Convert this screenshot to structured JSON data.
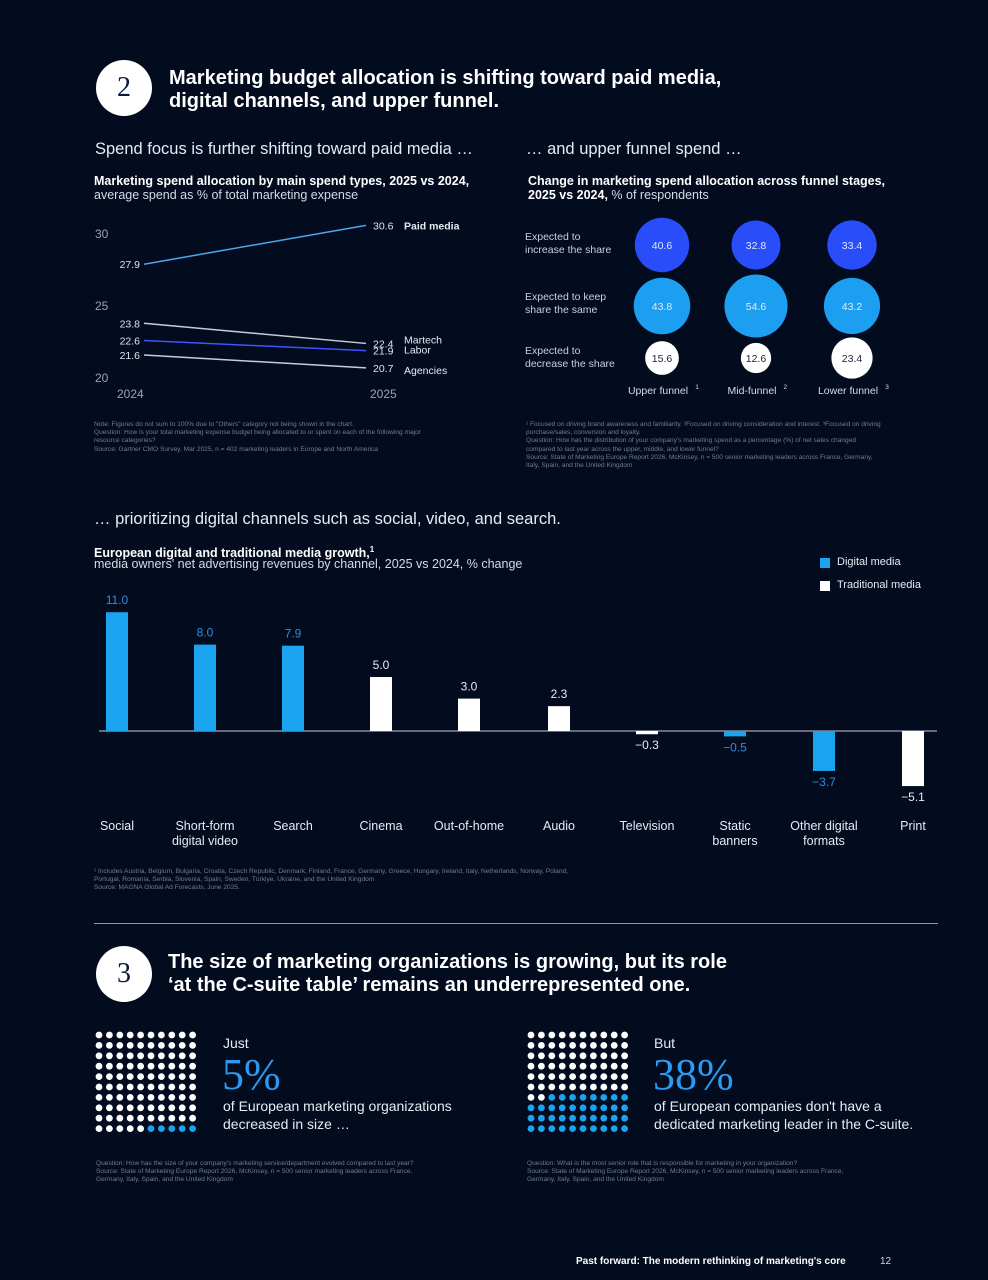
{
  "section2": {
    "number": "2",
    "title_line1": "Marketing budget allocation is shifting toward paid media,",
    "title_line2": "digital channels, and upper funnel."
  },
  "line_panel": {
    "subtitle": "Spend focus is further shifting toward paid media …",
    "title": "Marketing spend allocation by main spend types, 2025 vs 2024,",
    "desc": "average spend as % of total marketing expense",
    "notes": [
      "Note: Figures do not sum to 100% due to \"Others\" category not being shown in the chart.",
      "Question: How is your total marketing expense budget being allocated to or spent on each of the following major",
      "resource categories?",
      "Source: Gartner CMO Survey, Mar 2025, n = 402 marketing leaders in Europe and North America"
    ]
  },
  "bubble_panel": {
    "subtitle": "… and upper funnel spend …",
    "title": "Change in marketing spend allocation across funnel stages,",
    "title2": "2025 vs 2024,",
    "desc": " % of respondents",
    "notes": [
      "¹ Focused on driving brand awareness and familiarity. ²Focused on driving consideration and interest. ³Focused on driving",
      "purchase/sales, conversion and loyalty.",
      "Question: How has the distribution of your company's marketing spend as a percentage (%) of net sales changed",
      "compared to last year across the upper, middle, and lower funnel?",
      "Source: State of Marketing Europe Report 2026, McKinsey, n = 500 senior marketing leaders across France, Germany,",
      "Italy, Spain, and the United Kingdom"
    ]
  },
  "bar_panel": {
    "subtitle": "… prioritizing digital channels such as social, video, and search.",
    "title": "European digital and traditional media growth,",
    "title_sup": "1",
    "desc": "media owners' net advertising revenues by channel, 2025 vs 2024, % change",
    "notes": [
      "¹ Includes Austria, Belgium, Bulgaria, Croatia, Czech Republic, Denmark, Finland, France, Germany, Greece, Hungary, Ireland, Italy, Netherlands, Norway, Poland,",
      "Portugal, Romania, Serbia, Slovenia, Spain, Sweden, Türkiye, Ukraine, and the United Kingdom",
      "Source: MAGNA Global Ad Forecasts, June 2025."
    ]
  },
  "section3": {
    "number": "3",
    "title_line1": "The size of marketing organizations is growing, but its role",
    "title_line2": "‘at the C-suite table’ remains an underrepresented one."
  },
  "stat1": {
    "pre": "Just",
    "value": "5%",
    "line1": "of European marketing organizations",
    "line2": "decreased in size …",
    "fraction": 0.05,
    "notes": [
      "Question: How has the size of your company's marketing service/department evolved compared to last year?",
      "Source: State of Marketing Europe Report 2026, McKinsey, n = 500 senior marketing leaders across France,",
      "Germany, Italy, Spain, and the United Kingdom"
    ]
  },
  "stat2": {
    "pre": "But",
    "value": "38%",
    "line1": "of European companies don't have a",
    "line2": "dedicated marketing leader in the C-suite.",
    "fraction": 0.38,
    "notes": [
      "Question: What is the most senior role that is responsible for marketing in your organization?",
      "Source: State of Marketing Europe Report 2026, McKinsey, n = 500 senior marketing leaders across France,",
      "Germany, Italy, Spain, and the United Kingdom"
    ]
  },
  "footer": {
    "text": "Past forward: The modern rethinking of marketing's core",
    "page": "12"
  },
  "colors": {
    "background": "#030b1f",
    "digital": "#1aa3ee",
    "traditional": "#ffffff",
    "paid_media_line": "#4ea6ea",
    "labor_line": "#3d55ff",
    "increase_bubble": "#2a4dfa",
    "keep_bubble": "#1c9ff0",
    "decrease_bubble": "#ffffff"
  },
  "chart_data": [
    {
      "type": "line",
      "x": [
        "2024",
        "2025"
      ],
      "yticks": [
        "20",
        "25",
        "30"
      ],
      "ylim": [
        20,
        30
      ],
      "series": [
        {
          "name": "Paid media",
          "values": [
            27.9,
            30.6
          ],
          "labels": [
            "27.9",
            "30.6"
          ]
        },
        {
          "name": "Martech",
          "values": [
            23.8,
            22.4
          ],
          "labels": [
            "23.8",
            "22.4"
          ]
        },
        {
          "name": "Labor",
          "values": [
            22.6,
            21.9
          ],
          "labels": [
            "22.6",
            "21.9"
          ]
        },
        {
          "name": "Agencies",
          "values": [
            21.6,
            20.7
          ],
          "labels": [
            "21.6",
            "20.7"
          ]
        }
      ]
    },
    {
      "type": "bubble",
      "columns": [
        "Upper funnel",
        "Mid-funnel",
        "Lower funnel"
      ],
      "column_sups": [
        "1",
        "2",
        "3"
      ],
      "rows": [
        {
          "name": "Expected to increase the share",
          "line1": "Expected to",
          "line2": "increase the share",
          "values": [
            40.6,
            32.8,
            33.4
          ],
          "labels": [
            "40.6",
            "32.8",
            "33.4"
          ]
        },
        {
          "name": "Expected to keep share the same",
          "line1": "Expected to keep",
          "line2": "share the same",
          "values": [
            43.8,
            54.6,
            43.2
          ],
          "labels": [
            "43.8",
            "54.6",
            "43.2"
          ]
        },
        {
          "name": "Expected to decrease the share",
          "line1": "Expected to",
          "line2": "decrease the share",
          "values": [
            15.6,
            12.6,
            23.4
          ],
          "labels": [
            "15.6",
            "12.6",
            "23.4"
          ]
        }
      ]
    },
    {
      "type": "bar",
      "legend": [
        "Digital media",
        "Traditional media"
      ],
      "legend_position": "top-right",
      "categories": [
        {
          "line1": "Social",
          "line2": "",
          "value": 11.0,
          "label": "11.0",
          "media": "digital"
        },
        {
          "line1": "Short-form",
          "line2": "digital video",
          "value": 8.0,
          "label": "8.0",
          "media": "digital"
        },
        {
          "line1": "Search",
          "line2": "",
          "value": 7.9,
          "label": "7.9",
          "media": "digital"
        },
        {
          "line1": "Cinema",
          "line2": "",
          "value": 5.0,
          "label": "5.0",
          "media": "traditional"
        },
        {
          "line1": "Out-of-home",
          "line2": "",
          "value": 3.0,
          "label": "3.0",
          "media": "traditional"
        },
        {
          "line1": "Audio",
          "line2": "",
          "value": 2.3,
          "label": "2.3",
          "media": "traditional"
        },
        {
          "line1": "Television",
          "line2": "",
          "value": -0.3,
          "label": "−0.3",
          "media": "traditional"
        },
        {
          "line1": "Static",
          "line2": "banners",
          "value": -0.5,
          "label": "−0.5",
          "media": "digital"
        },
        {
          "line1": "Other digital",
          "line2": "formats",
          "value": -3.7,
          "label": "−3.7",
          "media": "digital"
        },
        {
          "line1": "Print",
          "line2": "",
          "value": -5.1,
          "label": "−5.1",
          "media": "traditional"
        }
      ]
    }
  ]
}
